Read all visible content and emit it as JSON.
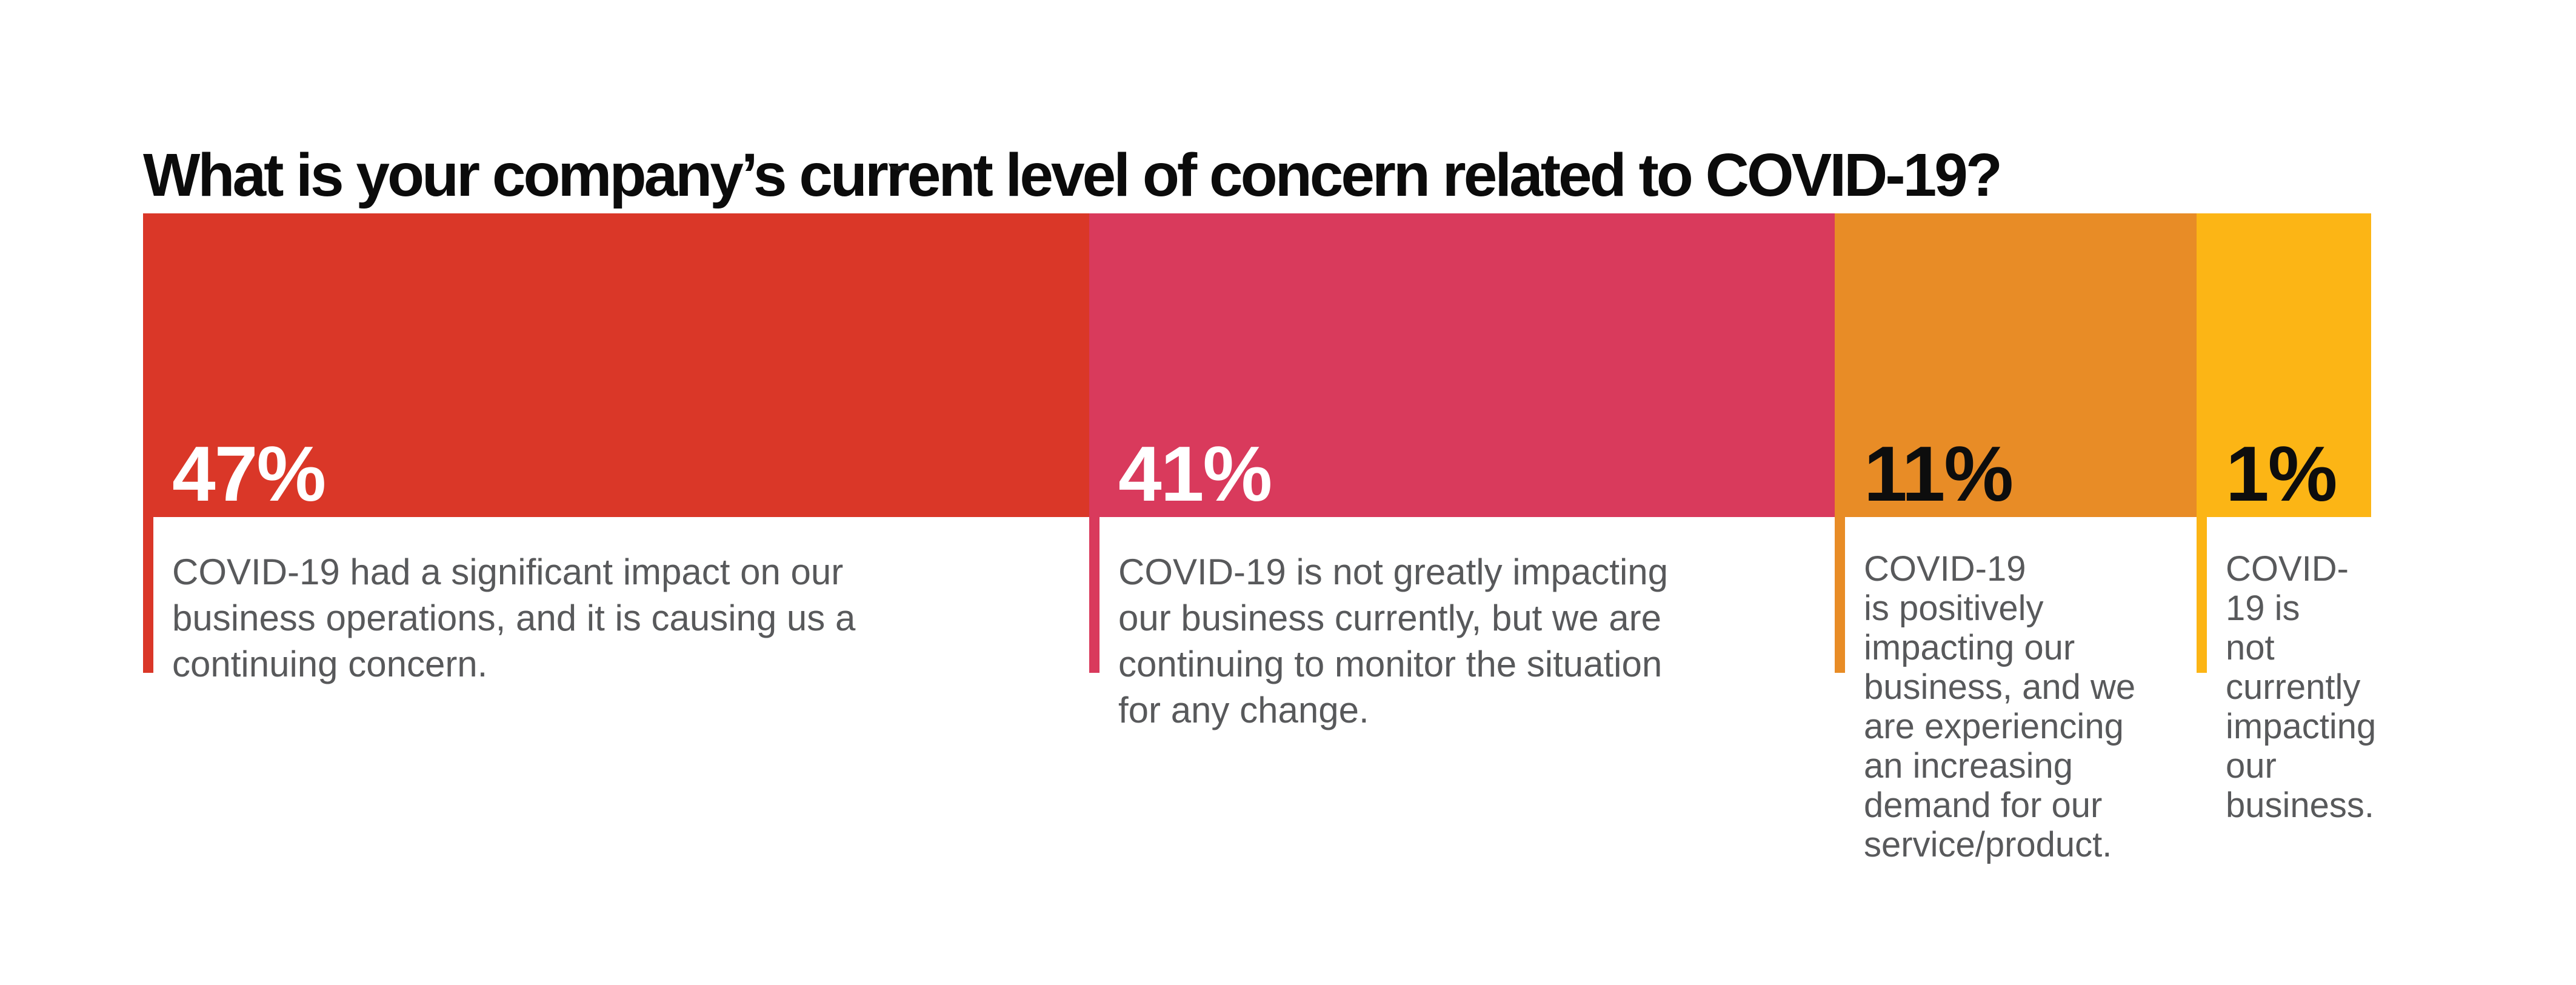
{
  "title": "What is your company’s current level of concern related to COVID-19?",
  "palette": {
    "background": "#ffffff",
    "title_color": "#0b0b0b",
    "description_color": "#58595b"
  },
  "chart_data": {
    "type": "bar",
    "variant": "single-row-stacked-percentage",
    "title": "What is your company’s current level of concern related to COVID-19?",
    "unit": "percent",
    "total": 100,
    "xlabel": "",
    "ylabel": "",
    "legend": false,
    "gridlines": false,
    "segments": [
      {
        "label": "47%",
        "value": 47,
        "color": "#da3728",
        "label_color": "#ffffff",
        "description": "COVID-19 had a significant impact on our\nbusiness operations, and it is causing us a\ncontinuing concern."
      },
      {
        "label": "41%",
        "value": 41,
        "color": "#d93a5c",
        "label_color": "#ffffff",
        "description": "COVID-19 is not greatly impacting\nour business currently, but we are\ncontinuing to monitor the situation\nfor any change."
      },
      {
        "label": "11%",
        "value": 11,
        "color": "#e88c26",
        "label_color": "#0d0d0d",
        "description": "COVID-19\nis positively\nimpacting our\nbusiness, and we\nare experiencing\nan increasing\ndemand for our\nservice/product."
      },
      {
        "label": "1%",
        "value": 1,
        "color": "#fcb515",
        "label_color": "#0d0d0d",
        "description": "COVID-19 is\nnot currently\nimpacting our\nbusiness."
      }
    ]
  }
}
